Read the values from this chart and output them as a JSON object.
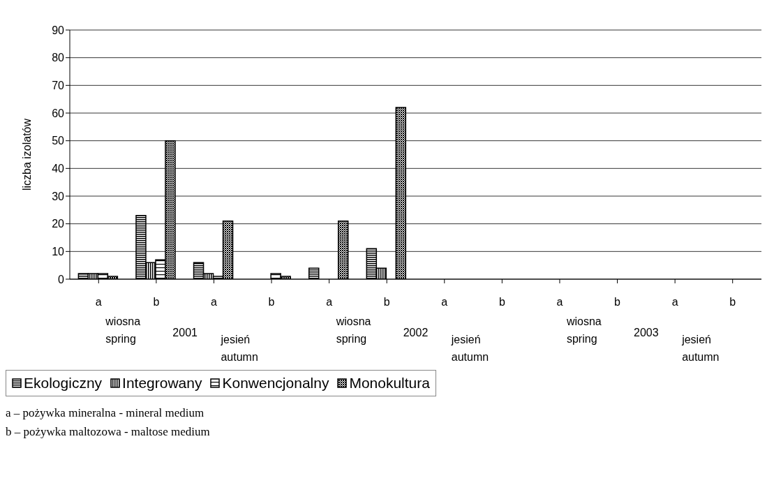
{
  "chart_data": {
    "type": "bar",
    "ylabel": "liczba izolatów",
    "categories": [
      "a",
      "b",
      "a",
      "b",
      "a",
      "b",
      "a",
      "b",
      "a",
      "b",
      "a",
      "b"
    ],
    "series": [
      {
        "name": "Ekologiczny",
        "color": "#000000",
        "values": [
          2,
          23,
          6,
          0,
          4,
          11,
          0,
          0,
          0,
          0,
          0,
          0
        ]
      },
      {
        "name": "Integrowany",
        "color": "#000000",
        "values": [
          2,
          6,
          2,
          0,
          0,
          4,
          0,
          0,
          0,
          0,
          0,
          0
        ]
      },
      {
        "name": "Konwencjonalny",
        "color": "#000000",
        "values": [
          2,
          7,
          1,
          2,
          0,
          0,
          0,
          0,
          0,
          0,
          0,
          0
        ]
      },
      {
        "name": "Monokultura",
        "color": "#000000",
        "values": [
          1,
          50,
          21,
          1,
          21,
          62,
          0,
          0,
          0,
          0,
          0,
          0
        ]
      }
    ],
    "ylim": [
      0,
      90
    ],
    "yticks": [
      0,
      10,
      20,
      30,
      40,
      50,
      60,
      70,
      80,
      90
    ],
    "grid": "y",
    "legend": "bottom left",
    "annotations": [
      "wiosna spring",
      "2001",
      "jesień autumn",
      "wiosna spring",
      "2002",
      "jesień autumn",
      "wiosna spring",
      "2003",
      "jesień autumn",
      "a – pożywka mineralna - mineral medium",
      "b – pożywka maltozowa - maltose medium"
    ]
  }
}
